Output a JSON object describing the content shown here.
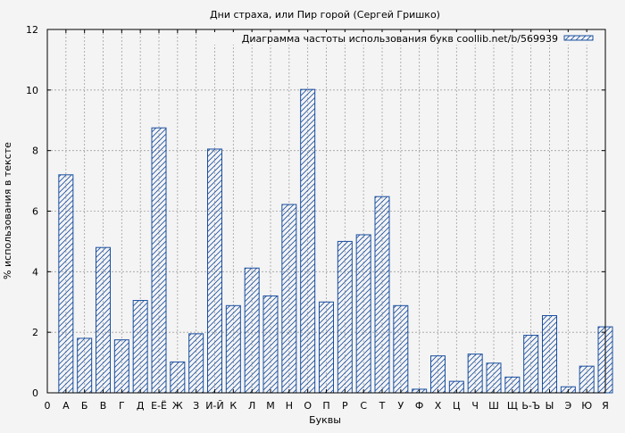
{
  "chart_data": {
    "type": "bar",
    "title": "Дни страха, или Пир горой (Сергей Гришко)",
    "xlabel": "Буквы",
    "ylabel": "% использования в тексте",
    "legend": {
      "label": "Диаграмма частоты использования букв coollib.net/b/569939",
      "placement": "top-right"
    },
    "ylim": [
      0,
      12
    ],
    "yticks": [
      0,
      2,
      4,
      6,
      8,
      10,
      12
    ],
    "grid": true,
    "x_tick_labels": [
      "0",
      "А",
      "Б",
      "В",
      "Г",
      "Д",
      "Е-Ё",
      "Ж",
      "З",
      "И-Й",
      "К",
      "Л",
      "М",
      "Н",
      "О",
      "П",
      "Р",
      "С",
      "Т",
      "У",
      "Ф",
      "Х",
      "Ц",
      "Ч",
      "Ш",
      "Щ",
      "Ь-Ъ",
      "Ы",
      "Э",
      "Ю",
      "Я"
    ],
    "categories": [
      "А",
      "Б",
      "В",
      "Г",
      "Д",
      "Е-Ё",
      "Ж",
      "З",
      "И-Й",
      "К",
      "Л",
      "М",
      "Н",
      "О",
      "П",
      "Р",
      "С",
      "Т",
      "У",
      "Ф",
      "Х",
      "Ц",
      "Ч",
      "Ш",
      "Щ",
      "Ь-Ъ",
      "Ы",
      "Э",
      "Ю",
      "Я"
    ],
    "values": [
      7.2,
      1.8,
      4.8,
      1.75,
      3.05,
      8.75,
      1.02,
      1.95,
      8.05,
      2.88,
      4.12,
      3.2,
      6.22,
      10.02,
      3.0,
      5.0,
      5.22,
      6.48,
      2.88,
      0.12,
      1.22,
      0.38,
      1.28,
      0.98,
      0.52,
      1.9,
      2.55,
      0.2,
      0.88,
      2.18
    ],
    "colors": {
      "bar_stroke": "#1a4fa0",
      "hatch": "#1a4fa0",
      "plot_bg": "#f4f4f4",
      "grid": "#a0a0a0"
    }
  }
}
